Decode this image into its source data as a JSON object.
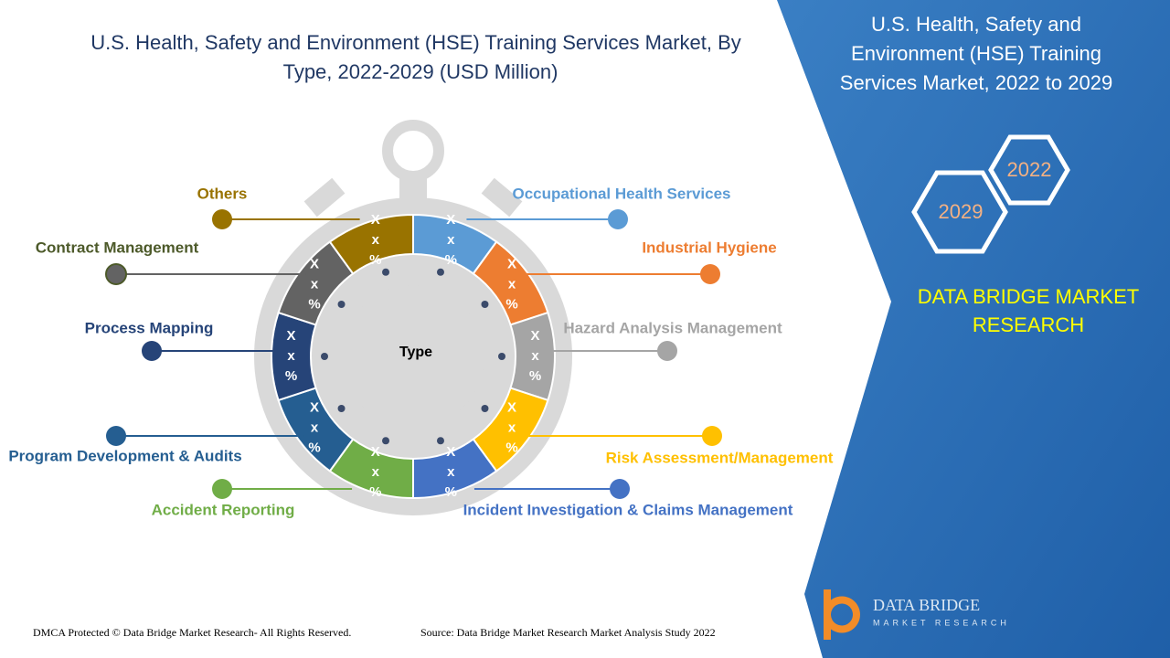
{
  "header": {
    "title_lines": [
      "U.S. Health, Safety and Environment (HSE) Training Services Market, By",
      "Type, 2022-2029 (USD Million)"
    ]
  },
  "center_label": "Type",
  "segments": [
    {
      "label": "Occupational Health Services",
      "color": "#5b9bd5",
      "texts": [
        "X",
        "x",
        "%"
      ]
    },
    {
      "label": "Industrial Hygiene",
      "color": "#ed7d31",
      "texts": [
        "X",
        "x",
        "%"
      ]
    },
    {
      "label": "Hazard Analysis Management",
      "color": "#a5a5a5",
      "texts": [
        "X",
        "x",
        "%"
      ]
    },
    {
      "label": "Risk Assessment/Management",
      "color": "#ffc000",
      "texts": [
        "X",
        "x",
        "%"
      ]
    },
    {
      "label": "Incident Investigation & Claims Management",
      "color": "#4472c4",
      "texts": [
        "X",
        "x",
        "%"
      ]
    },
    {
      "label": "Accident Reporting",
      "color": "#70ad47",
      "texts": [
        "X",
        "x",
        "%"
      ]
    },
    {
      "label": "Program Development & Audits",
      "color": "#255e91",
      "texts": [
        "X",
        "x",
        "%"
      ]
    },
    {
      "label": "Process Mapping",
      "color": "#264478",
      "texts": [
        "X",
        "x",
        "%"
      ]
    },
    {
      "label": "Contract Management",
      "color": "#636363",
      "texts": [
        "X",
        "x",
        "%"
      ]
    },
    {
      "label": "Others",
      "color": "#997300",
      "texts": [
        "X",
        "x",
        "%"
      ]
    }
  ],
  "sidebar": {
    "title_lines": [
      "U.S. Health, Safety and",
      "Environment (HSE) Training",
      "Services Market, 2022 to 2029"
    ],
    "years": [
      "2022",
      "2029"
    ],
    "brand_lines": [
      "DATA BRIDGE MARKET",
      "RESEARCH"
    ]
  },
  "logo": {
    "name": "DATA BRIDGE",
    "tagline": "MARKET RESEARCH"
  },
  "footer": {
    "copyright": "DMCA Protected © Data Bridge Market Research- All Rights Reserved.",
    "source": "Source: Data Bridge Market Research Market Analysis Study 2022"
  }
}
